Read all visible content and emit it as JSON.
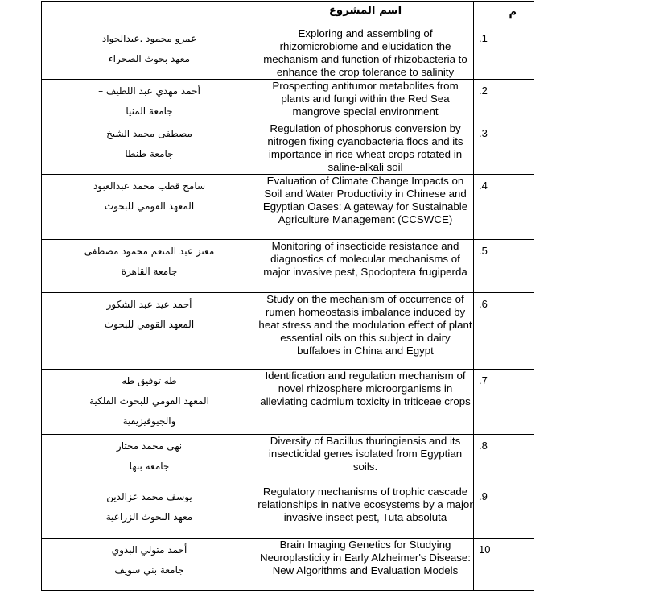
{
  "header": {
    "researcher": "",
    "project_name": "اسم المشروع",
    "number": "م"
  },
  "rows": [
    {
      "num": ".1",
      "researcher": [
        "عمرو محمود .عبدالجواد",
        "معهد بحوث الصحراء"
      ],
      "project": "Exploring and assembling of rhizomicrobiome and elucidation the mechanism and function of rhizobacteria to enhance the crop tolerance to salinity"
    },
    {
      "num": ".2",
      "researcher": [
        "أحمد مهدي عبد اللطيف –",
        "جامعة المنيا"
      ],
      "project": "Prospecting antitumor metabolites from plants and fungi within the Red Sea mangrove special environment"
    },
    {
      "num": ".3",
      "researcher": [
        "مصطفى محمد الشيخ",
        "جامعة طنطا"
      ],
      "project": "Regulation of phosphorus conversion by nitrogen fixing cyanobacteria flocs and its importance in rice-wheat crops rotated in saline-alkali soil"
    },
    {
      "num": ".4",
      "researcher": [
        "سامح قطب محمد عبدالعبود",
        "المعهد القومي للبحوث"
      ],
      "project": "Evaluation of Climate Change Impacts on Soil and Water Productivity in Chinese and Egyptian Oases: A gateway for Sustainable Agriculture Management (CCSWCE)"
    },
    {
      "num": ".5",
      "researcher": [
        "معتز عبد المنعم محمود مصطفى",
        "جامعة القاهرة"
      ],
      "project": "Monitoring of insecticide resistance and diagnostics of molecular mechanisms of major invasive pest, Spodoptera frugiperda"
    },
    {
      "num": ".6",
      "researcher": [
        "أحمد عيد عبد الشكور",
        "المعهد القومي للبحوث"
      ],
      "project": "Study on the mechanism of occurrence of rumen homeostasis imbalance induced by heat stress and the modulation effect of plant essential oils on this subject in dairy buffaloes in China and Egypt"
    },
    {
      "num": ".7",
      "researcher": [
        "طه توفيق طه",
        "المعهد القومي للبحوث الفلكية",
        "والجيوفيزيقية"
      ],
      "project": "Identification and regulation mechanism of novel rhizosphere microorganisms in alleviating cadmium toxicity in triticeae crops"
    },
    {
      "num": ".8",
      "researcher": [
        "نهى محمد مختار",
        "جامعة بنها"
      ],
      "project": "Diversity of Bacillus thuringiensis and its insecticidal genes isolated from Egyptian soils."
    },
    {
      "num": ".9",
      "researcher": [
        "يوسف محمد عزالدين",
        "معهد البحوث الزراعية"
      ],
      "project": "Regulatory mechanisms of trophic cascade relationships in native ecosystems by a major invasive insect pest, Tuta absoluta"
    },
    {
      "num": "10",
      "researcher": [
        "أحمد متولي البدوي",
        "جامعة بني سويف"
      ],
      "project": "Brain Imaging Genetics for Studying Neuroplasticity in Early Alzheimer's Disease: New Algorithms and Evaluation Models"
    }
  ]
}
